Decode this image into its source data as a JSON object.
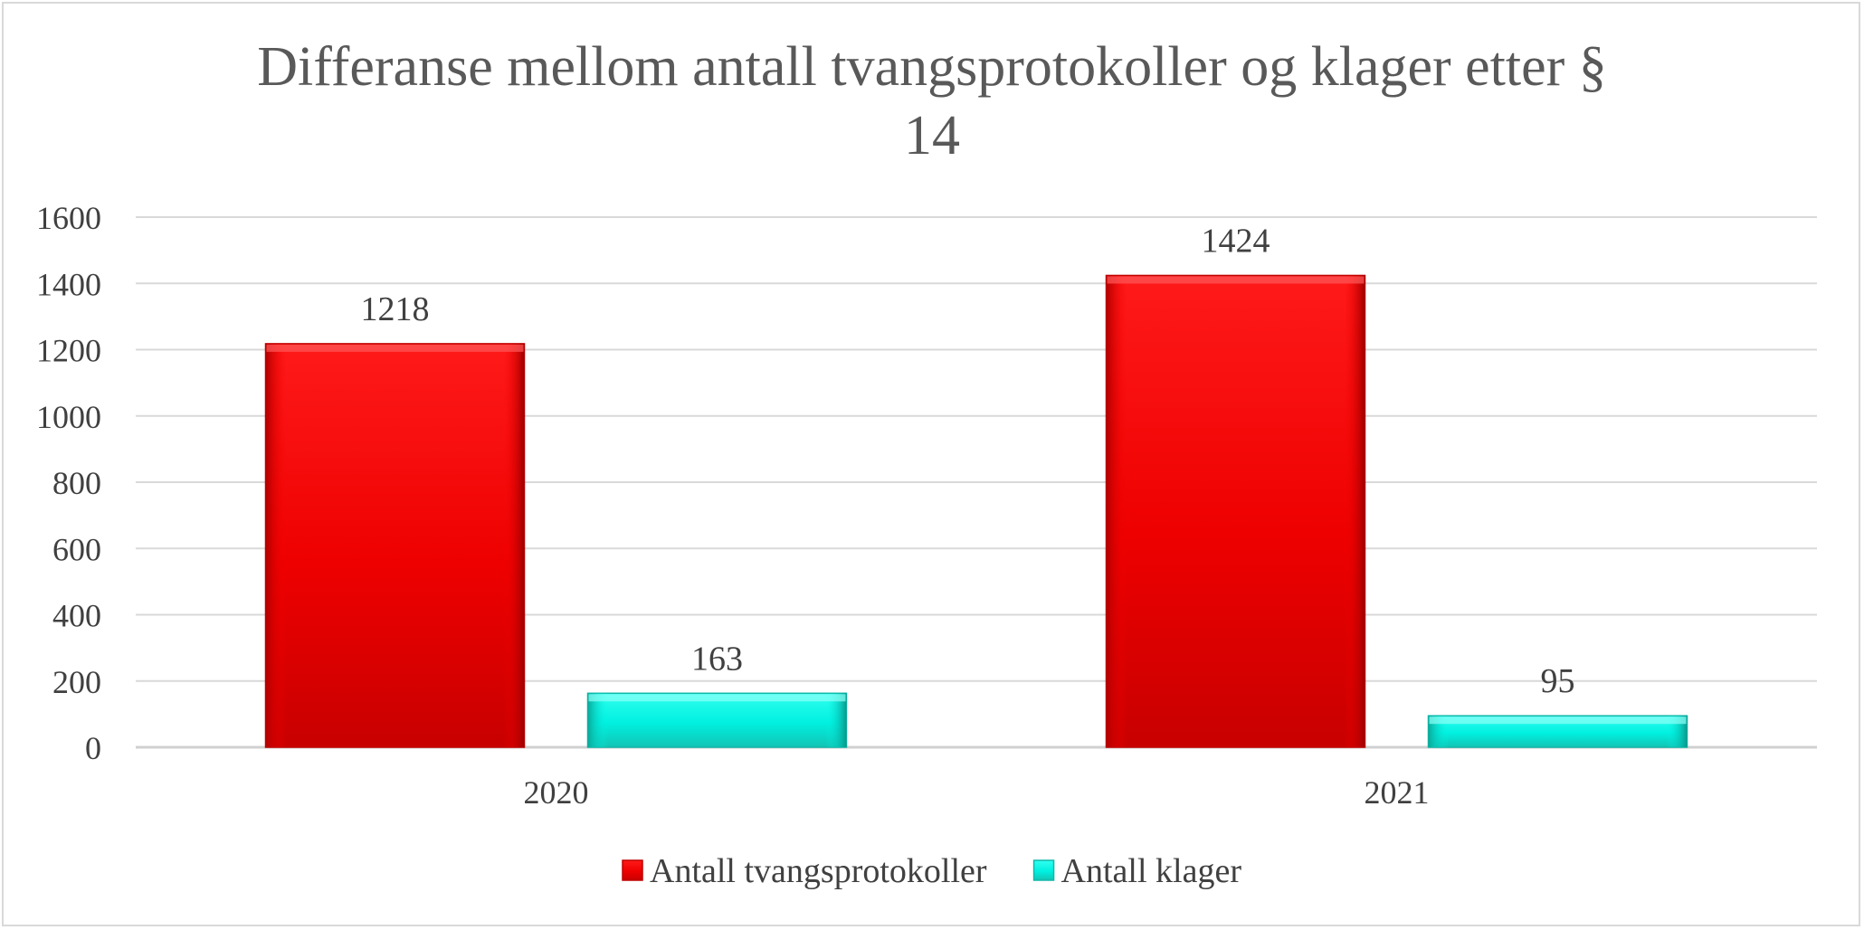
{
  "chart_data": {
    "type": "bar",
    "title_lines": [
      "Differanse mellom antall tvangsprotokoller og klager etter §",
      "14"
    ],
    "categories": [
      "2020",
      "2021"
    ],
    "series": [
      {
        "name": "Antall tvangsprotokoller",
        "values": [
          1218,
          1424
        ],
        "color": "#ff0000",
        "color_dark": "#c00000"
      },
      {
        "name": "Antall klager",
        "values": [
          163,
          95
        ],
        "color": "#00ffee",
        "color_dark": "#10b8a8"
      }
    ],
    "ylim": [
      0,
      1600
    ],
    "yticks": [
      0,
      200,
      400,
      600,
      800,
      1000,
      1200,
      1400,
      1600
    ],
    "grid": true,
    "legend_position": "bottom",
    "data_labels": true
  }
}
